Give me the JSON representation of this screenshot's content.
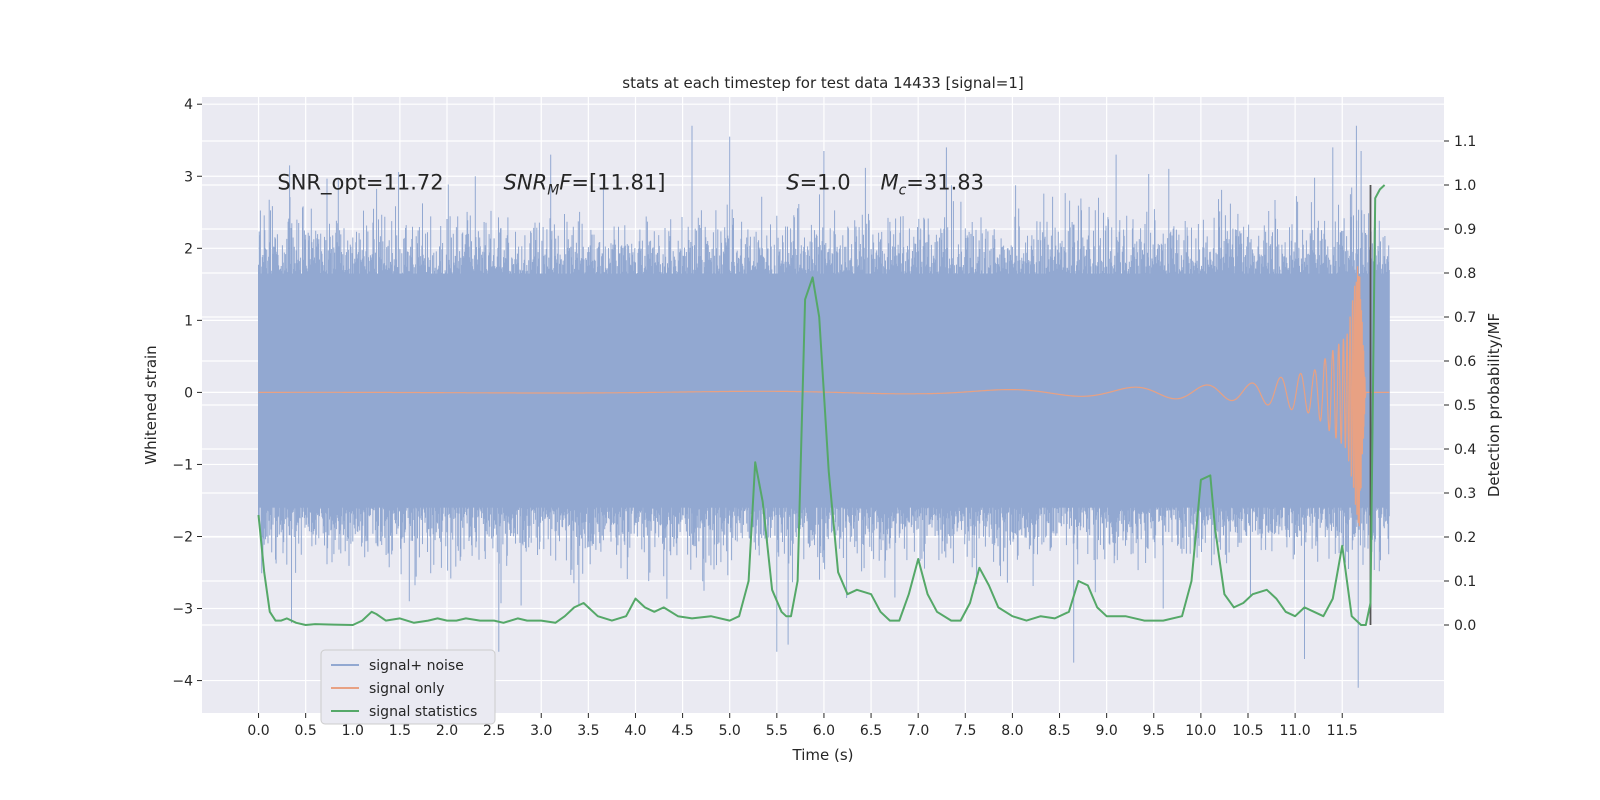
{
  "chart_data": {
    "type": "line",
    "title": "stats at each timestep for test data 14433 [signal=1]",
    "xlabel": "Time (s)",
    "ylabel": "Whitened strain",
    "ylabel_right": "Detection probability/MF",
    "xlim": [
      -0.6,
      12.58
    ],
    "ylim": [
      -4.45,
      4.1
    ],
    "ylim_right": [
      -0.2,
      1.2
    ],
    "x_ticks": [
      0.0,
      0.5,
      1.0,
      1.5,
      2.0,
      2.5,
      3.0,
      3.5,
      4.0,
      4.5,
      5.0,
      5.5,
      6.0,
      6.5,
      7.0,
      7.5,
      8.0,
      8.5,
      9.0,
      9.5,
      10.0,
      10.5,
      11.0,
      11.5
    ],
    "x_tick_labels": [
      "0.0",
      "0.5",
      "1.0",
      "1.5",
      "2.0",
      "2.5",
      "3.0",
      "3.5",
      "4.0",
      "4.5",
      "5.0",
      "5.5",
      "6.0",
      "6.5",
      "7.0",
      "7.5",
      "8.0",
      "8.5",
      "9.0",
      "9.5",
      "10.0",
      "10.5",
      "11.0",
      "11.5"
    ],
    "y_ticks": [
      -4,
      -3,
      -2,
      -1,
      0,
      1,
      2,
      3,
      4
    ],
    "y_tick_labels": [
      "−4",
      "−3",
      "−2",
      "−1",
      "0",
      "1",
      "2",
      "3",
      "4"
    ],
    "y_right_ticks": [
      0.0,
      0.1,
      0.2,
      0.3,
      0.4,
      0.5,
      0.6,
      0.7,
      0.8,
      0.9,
      1.0,
      1.1
    ],
    "y_right_tick_labels": [
      "0.0",
      "0.1",
      "0.2",
      "0.3",
      "0.4",
      "0.5",
      "0.6",
      "0.7",
      "0.8",
      "0.9",
      "1.0",
      "1.1"
    ],
    "grid": true,
    "legend_position": "lower-left",
    "annotations": [
      {
        "text": "SNR_opt=11.72",
        "x": 0.2,
        "y": 2.9
      },
      {
        "text": "SNR_MF=[11.81]",
        "x": 2.6,
        "y": 2.9
      },
      {
        "text": "S=1.0",
        "x": 5.6,
        "y": 2.9
      },
      {
        "text": "M_c=31.83",
        "x": 6.6,
        "y": 2.9
      }
    ],
    "vertical_marker": {
      "x": 11.8,
      "y_right_range": [
        0.0,
        1.0
      ]
    },
    "colors": {
      "signal_noise": "#92a8d1",
      "signal_only": "#e8a183",
      "signal_statistics": "#55a868",
      "marker": "#555555",
      "axes_bg": "#eaeaf2",
      "grid": "#ffffff"
    },
    "series": [
      {
        "name": "signal+ noise",
        "color": "#92a8d1",
        "t_start": 0.0,
        "t_end": 12.0,
        "band": [
          -1.6,
          1.65
        ],
        "spikes": [
          {
            "x": 0.33,
            "y": 3.15
          },
          {
            "x": 0.35,
            "y": -3.2
          },
          {
            "x": 1.6,
            "y": -2.9
          },
          {
            "x": 2.3,
            "y": 3.0
          },
          {
            "x": 2.55,
            "y": -3.6
          },
          {
            "x": 3.1,
            "y": 3.3
          },
          {
            "x": 3.4,
            "y": -2.95
          },
          {
            "x": 4.6,
            "y": 3.7
          },
          {
            "x": 5.0,
            "y": 3.55
          },
          {
            "x": 5.5,
            "y": -3.6
          },
          {
            "x": 5.62,
            "y": -3.5
          },
          {
            "x": 6.0,
            "y": 3.35
          },
          {
            "x": 7.3,
            "y": 3.4
          },
          {
            "x": 8.65,
            "y": -3.75
          },
          {
            "x": 9.1,
            "y": 3.3
          },
          {
            "x": 9.6,
            "y": -3.0
          },
          {
            "x": 11.1,
            "y": -3.7
          },
          {
            "x": 11.4,
            "y": 3.4
          },
          {
            "x": 11.65,
            "y": 3.7
          },
          {
            "x": 11.67,
            "y": -4.1
          },
          {
            "x": 11.7,
            "y": 3.35
          }
        ]
      },
      {
        "name": "signal only",
        "color": "#e8a183",
        "description_points": [
          {
            "x": 0.0,
            "amp": 0.0
          },
          {
            "x": 7.0,
            "amp": 0.02
          },
          {
            "x": 9.0,
            "amp": 0.06
          },
          {
            "x": 10.5,
            "amp": 0.12
          },
          {
            "x": 11.2,
            "amp": 0.3
          },
          {
            "x": 11.55,
            "amp": 0.8
          },
          {
            "x": 11.68,
            "amp": 1.9
          },
          {
            "x": 11.75,
            "amp": 0.0
          }
        ]
      },
      {
        "name": "signal statistics",
        "color": "#55a868",
        "axis": "right",
        "x": [
          0.0,
          0.06,
          0.12,
          0.18,
          0.24,
          0.3,
          0.4,
          0.5,
          0.6,
          0.8,
          1.0,
          1.1,
          1.2,
          1.25,
          1.35,
          1.5,
          1.65,
          1.8,
          1.9,
          2.0,
          2.1,
          2.2,
          2.35,
          2.5,
          2.6,
          2.75,
          2.85,
          3.0,
          3.15,
          3.25,
          3.35,
          3.45,
          3.6,
          3.75,
          3.9,
          4.0,
          4.1,
          4.2,
          4.3,
          4.45,
          4.6,
          4.8,
          5.0,
          5.1,
          5.2,
          5.27,
          5.35,
          5.45,
          5.55,
          5.6,
          5.65,
          5.72,
          5.8,
          5.88,
          5.95,
          6.05,
          6.15,
          6.25,
          6.35,
          6.5,
          6.6,
          6.7,
          6.8,
          6.9,
          7.0,
          7.1,
          7.2,
          7.35,
          7.45,
          7.55,
          7.65,
          7.75,
          7.85,
          8.0,
          8.15,
          8.3,
          8.45,
          8.6,
          8.7,
          8.8,
          8.9,
          9.0,
          9.2,
          9.4,
          9.6,
          9.8,
          9.9,
          10.0,
          10.1,
          10.15,
          10.25,
          10.35,
          10.45,
          10.55,
          10.7,
          10.8,
          10.9,
          11.0,
          11.1,
          11.2,
          11.3,
          11.4,
          11.5,
          11.6,
          11.65,
          11.7,
          11.75,
          11.8,
          11.85,
          11.9,
          11.95
        ],
        "values": [
          0.25,
          0.12,
          0.03,
          0.01,
          0.01,
          0.015,
          0.005,
          0.0,
          0.002,
          0.001,
          0.0,
          0.01,
          0.03,
          0.025,
          0.01,
          0.015,
          0.005,
          0.01,
          0.015,
          0.01,
          0.01,
          0.015,
          0.01,
          0.01,
          0.005,
          0.015,
          0.01,
          0.01,
          0.005,
          0.02,
          0.04,
          0.05,
          0.02,
          0.01,
          0.02,
          0.06,
          0.04,
          0.03,
          0.04,
          0.02,
          0.015,
          0.02,
          0.01,
          0.02,
          0.1,
          0.37,
          0.28,
          0.08,
          0.03,
          0.02,
          0.02,
          0.1,
          0.74,
          0.79,
          0.7,
          0.35,
          0.12,
          0.07,
          0.08,
          0.07,
          0.03,
          0.01,
          0.01,
          0.07,
          0.15,
          0.07,
          0.03,
          0.01,
          0.01,
          0.05,
          0.13,
          0.09,
          0.04,
          0.02,
          0.01,
          0.02,
          0.015,
          0.03,
          0.1,
          0.09,
          0.04,
          0.02,
          0.02,
          0.01,
          0.01,
          0.02,
          0.1,
          0.33,
          0.34,
          0.22,
          0.07,
          0.04,
          0.05,
          0.07,
          0.08,
          0.06,
          0.03,
          0.02,
          0.04,
          0.03,
          0.02,
          0.06,
          0.18,
          0.02,
          0.01,
          0.0,
          0.0,
          0.05,
          0.97,
          0.99,
          1.0
        ]
      }
    ]
  }
}
